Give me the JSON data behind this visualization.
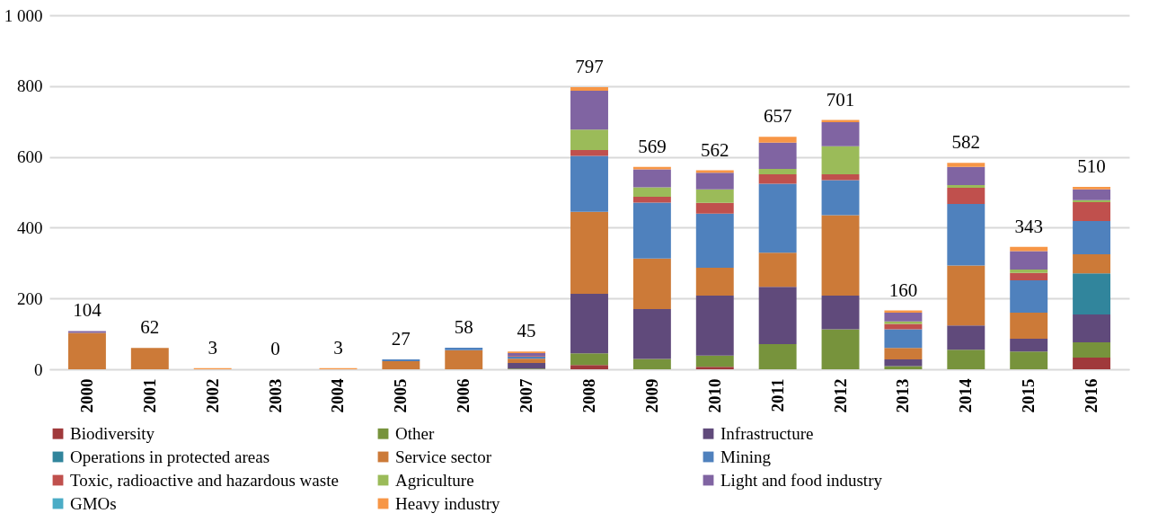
{
  "chart_data": {
    "type": "bar",
    "stacked": true,
    "categories": [
      "2000",
      "2001",
      "2002",
      "2003",
      "2004",
      "2005",
      "2006",
      "2007",
      "2008",
      "2009",
      "2010",
      "2011",
      "2012",
      "2013",
      "2014",
      "2015",
      "2016"
    ],
    "series": [
      {
        "name": "Biodiversity",
        "color": "#a0393b",
        "values": [
          0,
          0,
          0,
          0,
          0,
          0,
          0,
          0,
          12,
          0,
          7,
          0,
          0,
          0,
          0,
          0,
          33
        ]
      },
      {
        "name": "Other",
        "color": "#77933c",
        "values": [
          0,
          0,
          0,
          0,
          0,
          0,
          0,
          2,
          33,
          29,
          32,
          71,
          113,
          9,
          55,
          50,
          43
        ]
      },
      {
        "name": "Infrastructure",
        "color": "#604a7b",
        "values": [
          0,
          0,
          0,
          0,
          0,
          0,
          0,
          16,
          168,
          141,
          169,
          162,
          95,
          19,
          69,
          36,
          79
        ]
      },
      {
        "name": "Operations in protected areas",
        "color": "#31859c",
        "values": [
          0,
          0,
          0,
          0,
          0,
          0,
          0,
          0,
          0,
          0,
          0,
          0,
          0,
          0,
          0,
          0,
          116
        ]
      },
      {
        "name": "Service sector",
        "color": "#cc7a38",
        "values": [
          103,
          60,
          0,
          0,
          0,
          23,
          54,
          12,
          232,
          143,
          79,
          96,
          227,
          32,
          169,
          74,
          54
        ]
      },
      {
        "name": "Mining",
        "color": "#4f81bd",
        "values": [
          0,
          0,
          0,
          0,
          0,
          5,
          7,
          6,
          158,
          158,
          153,
          195,
          99,
          53,
          174,
          91,
          94
        ]
      },
      {
        "name": "Toxic, radioactive and hazardous waste",
        "color": "#c0504d",
        "values": [
          0,
          0,
          0,
          0,
          0,
          0,
          0,
          2,
          16,
          16,
          30,
          27,
          17,
          15,
          46,
          21,
          53
        ]
      },
      {
        "name": "Agriculture",
        "color": "#9bbb59",
        "values": [
          0,
          0,
          0,
          0,
          0,
          0,
          0,
          0,
          58,
          27,
          38,
          15,
          79,
          7,
          7,
          10,
          6
        ]
      },
      {
        "name": "Light and food industry",
        "color": "#8064a2",
        "values": [
          5,
          0,
          0,
          0,
          0,
          0,
          0,
          8,
          110,
          51,
          47,
          74,
          68,
          25,
          52,
          52,
          30
        ]
      },
      {
        "name": "GMOs",
        "color": "#4bacc6",
        "values": [
          0,
          0,
          0,
          0,
          0,
          0,
          0,
          0,
          0,
          0,
          0,
          0,
          0,
          0,
          0,
          0,
          0
        ]
      },
      {
        "name": "Heavy industry",
        "color": "#f79646",
        "values": [
          0,
          0,
          3,
          0,
          3,
          0,
          0,
          4,
          10,
          7,
          7,
          17,
          6,
          6,
          11,
          12,
          7
        ]
      }
    ],
    "totals": [
      "104",
      "62",
      "3",
      "0",
      "3",
      "27",
      "58",
      "45",
      "797",
      "569",
      "562",
      "657",
      "701",
      "160",
      "582",
      "343",
      "510"
    ],
    "ylim": [
      0,
      1000
    ],
    "yticks": [
      0,
      200,
      400,
      600,
      800,
      {
        "value": 1000,
        "label": "1 000"
      }
    ],
    "grid": "y",
    "legend": "bottom"
  }
}
